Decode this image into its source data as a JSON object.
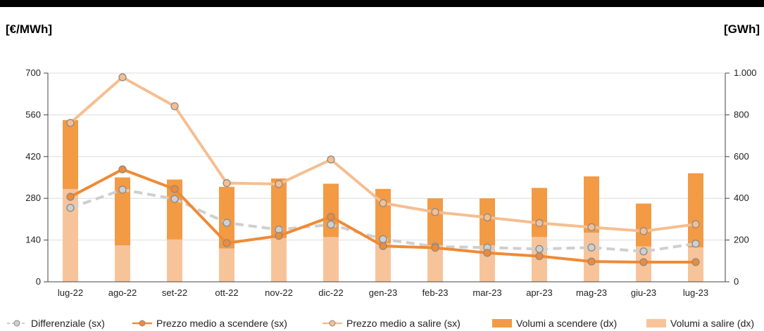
{
  "header": {
    "left_unit": "[€/MWh]",
    "right_unit": "[GWh]"
  },
  "colors": {
    "vol_down": "#F39A45",
    "vol_up": "#F7C49A",
    "price_down": "#F08A35",
    "price_up": "#F6BE90",
    "diff": "#CFCFCF",
    "grid": "#DDDDDD",
    "axis": "#444444"
  },
  "chart_data": {
    "type": "bar",
    "categories": [
      "lug-22",
      "ago-22",
      "set-22",
      "ott-22",
      "nov-22",
      "dic-22",
      "gen-23",
      "feb-23",
      "mar-23",
      "apr-23",
      "mag-23",
      "giu-23",
      "lug-23"
    ],
    "left_axis": {
      "label": "[€/MWh]",
      "ylim": [
        0,
        700
      ],
      "ticks": [
        "0",
        "140",
        "280",
        "420",
        "560",
        "700"
      ],
      "tick_values": [
        0,
        140,
        280,
        420,
        560,
        700
      ]
    },
    "right_axis": {
      "label": "[GWh]",
      "ylim": [
        0,
        1000
      ],
      "ticks": [
        "0",
        "200",
        "400",
        "600",
        "800",
        "1.000"
      ],
      "tick_values": [
        0,
        200,
        400,
        600,
        800,
        1000
      ]
    },
    "grid": true,
    "legend_position": "bottom",
    "series": [
      {
        "name": "Volumi a salire (dx)",
        "kind": "bar",
        "axis": "right",
        "stack": "base",
        "values": [
          445,
          175,
          203,
          160,
          210,
          215,
          185,
          175,
          175,
          215,
          235,
          170,
          165
        ]
      },
      {
        "name": "Volumi a scendere (dx)",
        "kind": "bar",
        "axis": "right",
        "stack": "total",
        "values": [
          775,
          500,
          490,
          455,
          495,
          470,
          445,
          400,
          400,
          450,
          505,
          375,
          520
        ]
      },
      {
        "name": "Prezzo medio a salire (sx)",
        "kind": "line",
        "axis": "left",
        "values": [
          533,
          686,
          589,
          331,
          328,
          410,
          264,
          234,
          216,
          197,
          183,
          170,
          193
        ]
      },
      {
        "name": "Prezzo medio a scendere (sx)",
        "kind": "line",
        "axis": "left",
        "values": [
          285,
          377,
          311,
          130,
          154,
          218,
          120,
          114,
          97,
          86,
          68,
          66,
          66
        ]
      },
      {
        "name": "Differenziale (sx)",
        "kind": "line",
        "axis": "left",
        "values": [
          248,
          309,
          278,
          198,
          175,
          192,
          143,
          118,
          115,
          110,
          115,
          102,
          128
        ]
      }
    ]
  },
  "legend": [
    {
      "label": "Differenziale (sx)"
    },
    {
      "label": "Prezzo medio a scendere (sx)"
    },
    {
      "label": "Prezzo medio a salire (sx)"
    },
    {
      "label": "Volumi a scendere (dx)"
    },
    {
      "label": "Volumi a salire (dx)"
    }
  ]
}
